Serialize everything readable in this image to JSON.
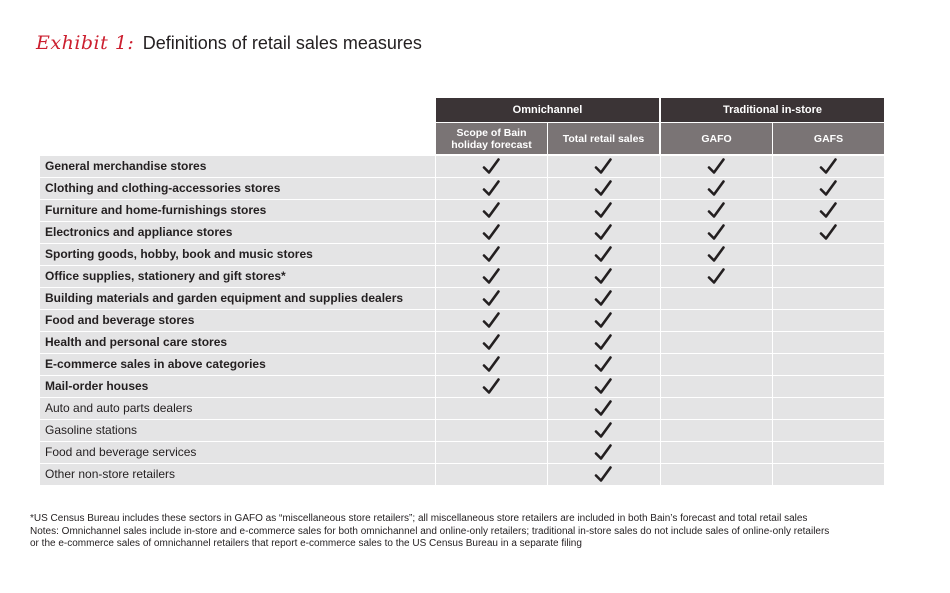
{
  "title": {
    "exhibit": "Exhibit 1:",
    "heading": "Definitions of retail sales measures"
  },
  "table": {
    "groups": [
      "Omnichannel",
      "Traditional in-store"
    ],
    "columns": [
      "Scope of Bain holiday forecast",
      "Total retail sales",
      "GAFO",
      "GAFS"
    ],
    "rows": [
      {
        "label": "General merchandise stores",
        "bold": true,
        "checks": [
          true,
          true,
          true,
          true
        ]
      },
      {
        "label": "Clothing and clothing-accessories stores",
        "bold": true,
        "checks": [
          true,
          true,
          true,
          true
        ]
      },
      {
        "label": "Furniture and home-furnishings stores",
        "bold": true,
        "checks": [
          true,
          true,
          true,
          true
        ]
      },
      {
        "label": "Electronics and appliance stores",
        "bold": true,
        "checks": [
          true,
          true,
          true,
          true
        ]
      },
      {
        "label": "Sporting goods, hobby, book and music stores",
        "bold": true,
        "checks": [
          true,
          true,
          true,
          false
        ]
      },
      {
        "label": "Office supplies, stationery and gift stores*",
        "bold": true,
        "checks": [
          true,
          true,
          true,
          false
        ]
      },
      {
        "label": "Building materials and garden equipment and supplies dealers",
        "bold": true,
        "checks": [
          true,
          true,
          false,
          false
        ]
      },
      {
        "label": "Food and beverage stores",
        "bold": true,
        "checks": [
          true,
          true,
          false,
          false
        ]
      },
      {
        "label": "Health and personal care stores",
        "bold": true,
        "checks": [
          true,
          true,
          false,
          false
        ]
      },
      {
        "label": "E-commerce sales in above categories",
        "bold": true,
        "checks": [
          true,
          true,
          false,
          false
        ]
      },
      {
        "label": "Mail-order houses",
        "bold": true,
        "checks": [
          true,
          true,
          false,
          false
        ]
      },
      {
        "label": "Auto and auto parts dealers",
        "bold": false,
        "checks": [
          false,
          true,
          false,
          false
        ]
      },
      {
        "label": "Gasoline stations",
        "bold": false,
        "checks": [
          false,
          true,
          false,
          false
        ]
      },
      {
        "label": "Food and beverage services",
        "bold": false,
        "checks": [
          false,
          true,
          false,
          false
        ]
      },
      {
        "label": "Other non-store retailers",
        "bold": false,
        "checks": [
          false,
          true,
          false,
          false
        ]
      }
    ]
  },
  "notes": [
    "*US Census Bureau includes these sectors in GAFO as “miscellaneous store retailers”; all miscellaneous store retailers are included in both Bain’s forecast and total retail sales",
    "Notes: Omnichannel sales include in-store and e-commerce sales for both omnichannel and online-only retailers; traditional in-store sales do not include sales of online-only retailers",
    "or the e-commerce sales of omnichannel retailers that report e-commerce sales to the US Census Bureau in a separate filing"
  ],
  "colors": {
    "exhibit_red": "#cc1f2f",
    "group_header_bg": "#3b3436",
    "column_header_bg": "#7a7475",
    "row_bg": "#e4e4e5",
    "check": "#231f20"
  }
}
